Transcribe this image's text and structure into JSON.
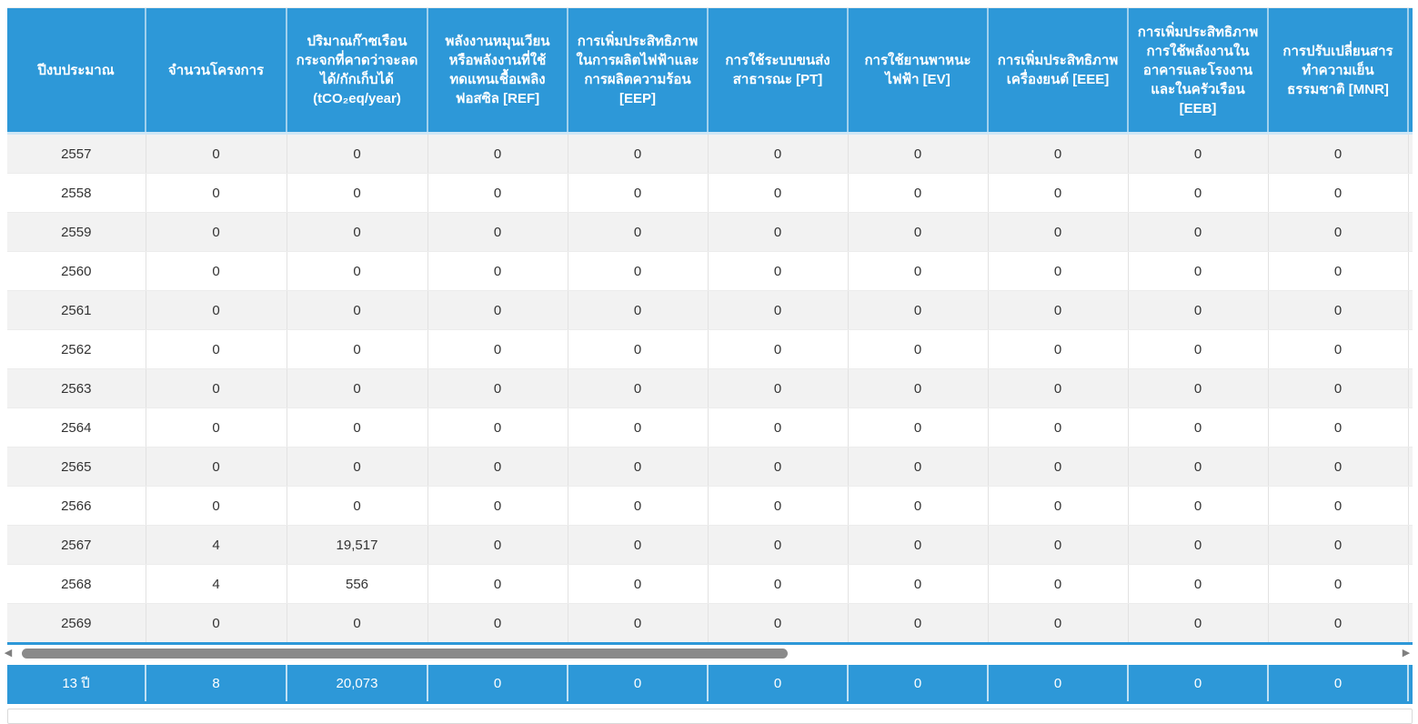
{
  "colors": {
    "header_blue": "#2d98d8",
    "row_stripe": "#f2f2f2",
    "scroll_thumb": "#8a8a8a"
  },
  "icons": {
    "scroll_left": "◀",
    "scroll_right": "▶"
  },
  "table": {
    "columns": [
      "ปีงบประมาณ",
      "จำนวนโครงการ",
      "ปริมาณก๊าซเรือน\nกระจกที่คาดว่าจะลด\nได้/กักเก็บได้\n(tCO₂eq/year)",
      "พลังงานหมุนเวียน\nหรือพลังงานที่ใช้\nทดแทนเชื้อเพลิง\nฟอสซิล [REF]",
      "การเพิ่มประสิทธิภาพ\nในการผลิตไฟฟ้าและ\nการผลิตความร้อน\n[EEP]",
      "การใช้ระบบขนส่ง\nสาธารณะ [PT]",
      "การใช้ยานพาหนะ\nไฟฟ้า [EV]",
      "การเพิ่มประสิทธิภาพ\nเครื่องยนต์ [EEE]",
      "การเพิ่มประสิทธิภาพ\nการใช้พลังงานใน\nอาคารและโรงงาน\nและในครัวเรือน\n[EEB]",
      "การปรับเปลี่ยนสาร\nทำความเย็น\nธรรมชาติ [MNR]",
      ""
    ],
    "rows": [
      {
        "year": "2557",
        "values": [
          "0",
          "0",
          "0",
          "0",
          "0",
          "0",
          "0",
          "0",
          "0"
        ]
      },
      {
        "year": "2558",
        "values": [
          "0",
          "0",
          "0",
          "0",
          "0",
          "0",
          "0",
          "0",
          "0"
        ]
      },
      {
        "year": "2559",
        "values": [
          "0",
          "0",
          "0",
          "0",
          "0",
          "0",
          "0",
          "0",
          "0"
        ]
      },
      {
        "year": "2560",
        "values": [
          "0",
          "0",
          "0",
          "0",
          "0",
          "0",
          "0",
          "0",
          "0"
        ]
      },
      {
        "year": "2561",
        "values": [
          "0",
          "0",
          "0",
          "0",
          "0",
          "0",
          "0",
          "0",
          "0"
        ]
      },
      {
        "year": "2562",
        "values": [
          "0",
          "0",
          "0",
          "0",
          "0",
          "0",
          "0",
          "0",
          "0"
        ]
      },
      {
        "year": "2563",
        "values": [
          "0",
          "0",
          "0",
          "0",
          "0",
          "0",
          "0",
          "0",
          "0"
        ]
      },
      {
        "year": "2564",
        "values": [
          "0",
          "0",
          "0",
          "0",
          "0",
          "0",
          "0",
          "0",
          "0"
        ]
      },
      {
        "year": "2565",
        "values": [
          "0",
          "0",
          "0",
          "0",
          "0",
          "0",
          "0",
          "0",
          "0"
        ]
      },
      {
        "year": "2566",
        "values": [
          "0",
          "0",
          "0",
          "0",
          "0",
          "0",
          "0",
          "0",
          "0"
        ]
      },
      {
        "year": "2567",
        "values": [
          "4",
          "19,517",
          "0",
          "0",
          "0",
          "0",
          "0",
          "0",
          "0"
        ]
      },
      {
        "year": "2568",
        "values": [
          "4",
          "556",
          "0",
          "0",
          "0",
          "0",
          "0",
          "0",
          "0"
        ]
      },
      {
        "year": "2569",
        "values": [
          "0",
          "0",
          "0",
          "0",
          "0",
          "0",
          "0",
          "0",
          "0"
        ]
      }
    ],
    "total_row": {
      "label": "13 ปี",
      "values": [
        "8",
        "20,073",
        "0",
        "0",
        "0",
        "0",
        "0",
        "0",
        "0"
      ]
    }
  }
}
